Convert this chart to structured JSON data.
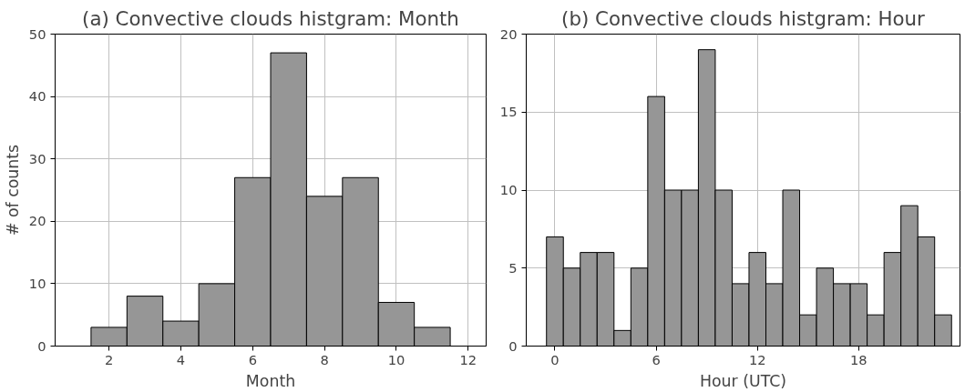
{
  "chart_data": [
    {
      "type": "histogram",
      "title": "(a) Convective clouds histgram: Month",
      "xlabel": "Month",
      "ylabel": "# of counts",
      "bins": [
        1.5,
        2.5,
        3.5,
        4.5,
        5.5,
        6.5,
        7.5,
        8.5,
        9.5,
        10.5,
        11.5
      ],
      "values": [
        3,
        8,
        4,
        10,
        27,
        47,
        24,
        27,
        7,
        3
      ],
      "color": "#969696",
      "xlim": [
        0.5,
        12.5
      ],
      "xticks": [
        2,
        4,
        6,
        8,
        10,
        12
      ],
      "ylim": [
        0,
        50
      ],
      "yticks": [
        0,
        10,
        20,
        30,
        40,
        50
      ],
      "grid": true
    },
    {
      "type": "histogram",
      "title": "(b) Convective clouds histgram: Hour",
      "xlabel": "Hour (UTC)",
      "bins": [
        -0.5,
        0.5,
        1.5,
        2.5,
        3.5,
        4.5,
        5.5,
        6.5,
        7.5,
        8.5,
        9.5,
        10.5,
        11.5,
        12.5,
        13.5,
        14.5,
        15.5,
        16.5,
        17.5,
        18.5,
        19.5,
        20.5,
        21.5,
        22.5,
        23.5
      ],
      "values": [
        7,
        5,
        6,
        6,
        1,
        5,
        16,
        10,
        10,
        19,
        10,
        4,
        6,
        4,
        10,
        2,
        5,
        4,
        4,
        2,
        6,
        9,
        7,
        2
      ],
      "color": "#969696",
      "xlim": [
        -1.7,
        24.0
      ],
      "xticks": [
        0,
        6,
        12,
        18
      ],
      "ylim": [
        0,
        20
      ],
      "yticks": [
        0,
        5,
        10,
        15,
        20
      ],
      "grid": true
    }
  ]
}
